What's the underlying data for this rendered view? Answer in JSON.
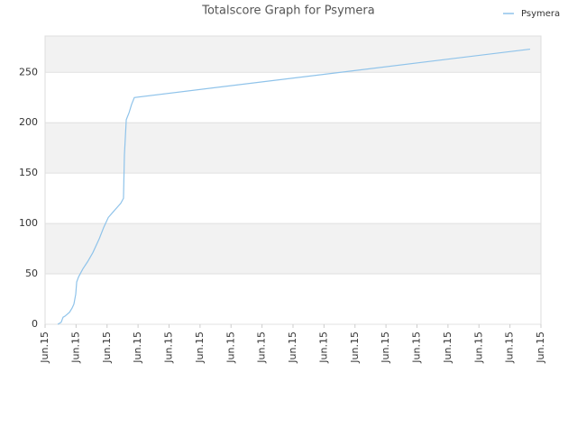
{
  "chart_data": {
    "type": "line",
    "title": "Totalscore Graph for Psymera",
    "x": [
      0.41,
      0.52,
      0.58,
      0.64,
      0.79,
      0.87,
      0.93,
      0.99,
      1.02,
      1.08,
      1.22,
      1.37,
      1.54,
      1.75,
      1.89,
      2.04,
      2.21,
      2.44,
      2.53,
      2.56,
      2.62,
      2.71,
      2.79,
      2.88,
      15.65
    ],
    "series": [
      {
        "name": "Psymera",
        "color": "#8fc3ea",
        "values": [
          0,
          2,
          7,
          8,
          12,
          16,
          20,
          30,
          42,
          47,
          55,
          62,
          71,
          85,
          96,
          106,
          112,
          120,
          125,
          168,
          203,
          210,
          218,
          225,
          273
        ]
      }
    ],
    "xlim": [
      0,
      16
    ],
    "xticks": [
      {
        "value": 0,
        "label": "Jun.15"
      },
      {
        "value": 1,
        "label": "Jun.15"
      },
      {
        "value": 2,
        "label": "Jun.15"
      },
      {
        "value": 3,
        "label": "Jun.15"
      },
      {
        "value": 4,
        "label": "Jun.15"
      },
      {
        "value": 5,
        "label": "Jun.15"
      },
      {
        "value": 6,
        "label": "Jun.15"
      },
      {
        "value": 7,
        "label": "Jun.15"
      },
      {
        "value": 8,
        "label": "Jun.15"
      },
      {
        "value": 9,
        "label": "Jun.15"
      },
      {
        "value": 10,
        "label": "Jun.15"
      },
      {
        "value": 11,
        "label": "Jun.15"
      },
      {
        "value": 12,
        "label": "Jun.15"
      },
      {
        "value": 13,
        "label": "Jun.15"
      },
      {
        "value": 14,
        "label": "Jun.15"
      },
      {
        "value": 15,
        "label": "Jun.15"
      },
      {
        "value": 16,
        "label": "Jun.15"
      }
    ],
    "ylim": [
      0,
      286
    ],
    "yticks": [
      0,
      50,
      100,
      150,
      200,
      250
    ],
    "grid": true,
    "legend": "top-right"
  }
}
